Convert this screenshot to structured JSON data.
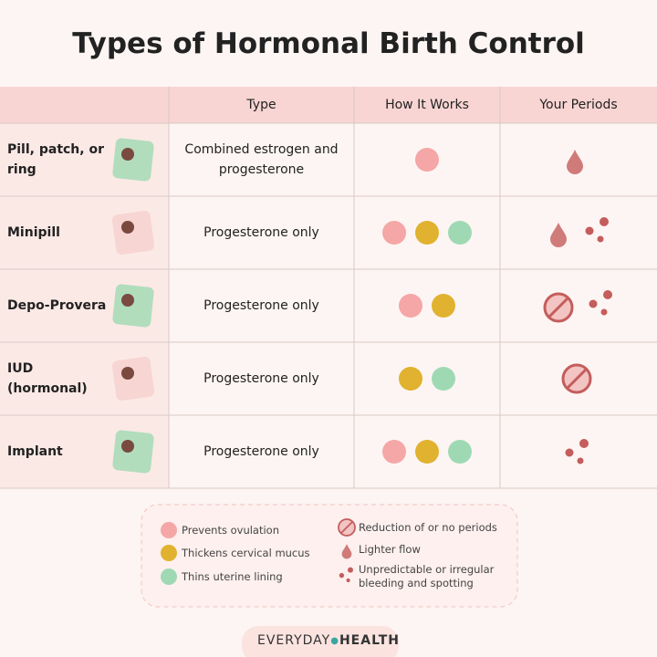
{
  "title": "Types of Hormonal Birth Control",
  "table": {
    "headers": [
      "Type",
      "How It Works",
      "Your Periods"
    ],
    "rows": [
      {
        "name": "Pill, patch, or ring",
        "type": "Combined estrogen and progesterone"
      },
      {
        "name": "Minipill",
        "type": "Progesterone only"
      },
      {
        "name": "Depo-Provera",
        "type": "Progesterone only"
      },
      {
        "name": "IUD (hormonal)",
        "type": "Progesterone only"
      },
      {
        "name": "Implant",
        "type": "Progesterone only"
      }
    ]
  },
  "legend": {
    "items": [
      "Prevents ovulation",
      "Thickens cervical mucus",
      "Thins uterine lining",
      "Reduction of or no periods",
      "Lighter flow",
      "Unpredictable or irregular bleeding and spotting"
    ]
  },
  "brand": {
    "part1": "EVERYDAY",
    "part2": "HEALTH"
  }
}
